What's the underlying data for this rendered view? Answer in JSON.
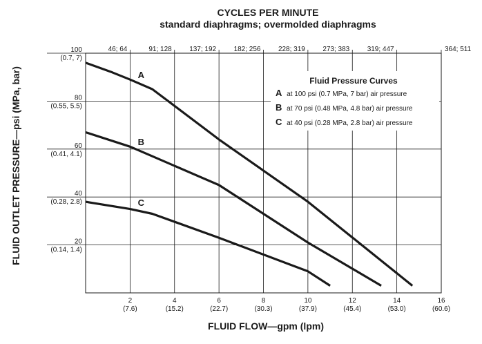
{
  "chart_data": {
    "type": "line",
    "title": "CYCLES PER MINUTE",
    "subtitle": "standard diaphragms; overmolded diaphragms",
    "xlabel": "FLUID FLOW—gpm (lpm)",
    "ylabel": "FLUID OUTLET PRESSURE—psi (MPa, bar)",
    "xlim": [
      0,
      16
    ],
    "ylim": [
      0,
      100
    ],
    "grid": true,
    "x_ticks": [
      {
        "value": 2,
        "label": "2",
        "sub": "(7.6)"
      },
      {
        "value": 4,
        "label": "4",
        "sub": "(15.2)"
      },
      {
        "value": 6,
        "label": "6",
        "sub": "(22.7)"
      },
      {
        "value": 8,
        "label": "8",
        "sub": "(30.3)"
      },
      {
        "value": 10,
        "label": "10",
        "sub": "(37.9)"
      },
      {
        "value": 12,
        "label": "12",
        "sub": "(45.4)"
      },
      {
        "value": 14,
        "label": "14",
        "sub": "(53.0)"
      },
      {
        "value": 16,
        "label": "16",
        "sub": "(60.6)"
      }
    ],
    "y_ticks": [
      {
        "value": 20,
        "label": "20",
        "sub": "(0.14, 1.4)"
      },
      {
        "value": 40,
        "label": "40",
        "sub": "(0.28, 2.8)"
      },
      {
        "value": 60,
        "label": "60",
        "sub": "(0.41, 4.1)"
      },
      {
        "value": 80,
        "label": "80",
        "sub": "(0.55, 5.5)"
      },
      {
        "value": 100,
        "label": "100",
        "sub": "(0.7, 7)"
      }
    ],
    "top_ticks": [
      {
        "value": 2,
        "label": "46; 64"
      },
      {
        "value": 4,
        "label": "91; 128"
      },
      {
        "value": 6,
        "label": "137; 192"
      },
      {
        "value": 8,
        "label": "182; 256"
      },
      {
        "value": 10,
        "label": "228; 319"
      },
      {
        "value": 12,
        "label": "273; 383"
      },
      {
        "value": 14,
        "label": "319; 447"
      },
      {
        "value": 16,
        "label": "364; 511"
      }
    ],
    "series": [
      {
        "name": "A",
        "points": [
          [
            0,
            96
          ],
          [
            1.2,
            92
          ],
          [
            2,
            89
          ],
          [
            3,
            85
          ],
          [
            6,
            64
          ],
          [
            10,
            38
          ],
          [
            14.7,
            3
          ]
        ]
      },
      {
        "name": "B",
        "points": [
          [
            0,
            67
          ],
          [
            2,
            61
          ],
          [
            3,
            57
          ],
          [
            6,
            45
          ],
          [
            10,
            21
          ],
          [
            13.3,
            3
          ]
        ]
      },
      {
        "name": "C",
        "points": [
          [
            0,
            38
          ],
          [
            2,
            35
          ],
          [
            3,
            33
          ],
          [
            6,
            23
          ],
          [
            10,
            9
          ],
          [
            11,
            3
          ]
        ]
      }
    ],
    "legend": {
      "title": "Fluid Pressure Curves",
      "entries": [
        {
          "key": "A",
          "text": "at 100 psi (0.7 MPa, 7 bar) air pressure"
        },
        {
          "key": "B",
          "text": "at 70 psi (0.48 MPa, 4.8 bar) air pressure"
        },
        {
          "key": "C",
          "text": "at 40 psi (0.28 MPa, 2.8 bar) air pressure"
        }
      ]
    }
  }
}
